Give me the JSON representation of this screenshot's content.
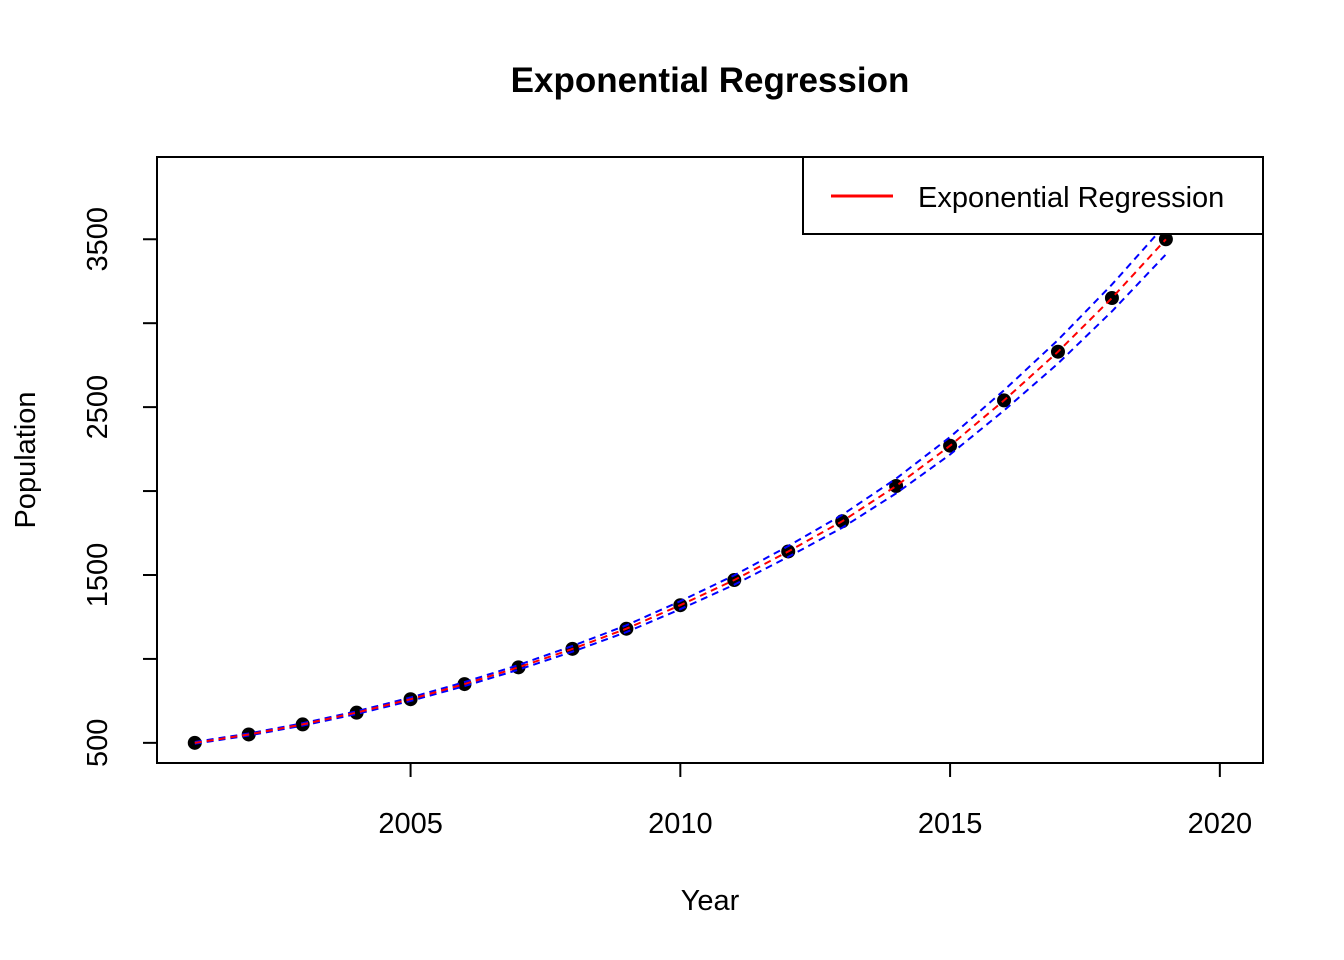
{
  "chart_data": {
    "type": "scatter",
    "title": "Exponential Regression",
    "xlabel": "Year",
    "ylabel": "Population",
    "xlim": [
      2000.3,
      2020.8
    ],
    "ylim": [
      380,
      3990
    ],
    "x_ticks": [
      2005,
      2010,
      2015,
      2020
    ],
    "y_ticks": [
      500,
      1500,
      2500,
      3500
    ],
    "y_minor_ticks": [
      500,
      1000,
      1500,
      2000,
      2500,
      3000,
      3500
    ],
    "grid": false,
    "legend": {
      "position": "top-right",
      "entries": [
        {
          "label": "Exponential Regression",
          "color": "#ff0000"
        }
      ]
    },
    "series": [
      {
        "kind": "points",
        "color": "#000000",
        "x": [
          2001,
          2002,
          2003,
          2004,
          2005,
          2006,
          2007,
          2008,
          2009,
          2010,
          2011,
          2012,
          2013,
          2014,
          2015,
          2016,
          2017,
          2018,
          2019
        ],
        "y": [
          500,
          550,
          610,
          680,
          760,
          850,
          950,
          1060,
          1180,
          1320,
          1470,
          1640,
          1820,
          2030,
          2270,
          2540,
          2830,
          3150,
          3500
        ]
      },
      {
        "kind": "fit",
        "color": "#ff0000",
        "line": "dashed",
        "x": [
          2001,
          2002,
          2003,
          2004,
          2005,
          2006,
          2007,
          2008,
          2009,
          2010,
          2011,
          2012,
          2013,
          2014,
          2015,
          2016,
          2017,
          2018,
          2019
        ],
        "y": [
          500,
          550,
          610,
          680,
          760,
          850,
          950,
          1060,
          1180,
          1320,
          1470,
          1640,
          1820,
          2030,
          2270,
          2540,
          2830,
          3150,
          3500
        ]
      },
      {
        "kind": "upper",
        "color": "#0000ff",
        "line": "dashed",
        "x": [
          2001,
          2002,
          2003,
          2004,
          2005,
          2006,
          2007,
          2008,
          2009,
          2010,
          2011,
          2012,
          2013,
          2014,
          2015,
          2016,
          2017,
          2018,
          2019
        ],
        "y": [
          505,
          556,
          617,
          688,
          770,
          862,
          964,
          1077,
          1200,
          1344,
          1498,
          1672,
          1858,
          2074,
          2322,
          2600,
          2900,
          3230,
          3590
        ]
      },
      {
        "kind": "lower",
        "color": "#0000ff",
        "line": "dashed",
        "x": [
          2001,
          2002,
          2003,
          2004,
          2005,
          2006,
          2007,
          2008,
          2009,
          2010,
          2011,
          2012,
          2013,
          2014,
          2015,
          2016,
          2017,
          2018,
          2019
        ],
        "y": [
          495,
          544,
          603,
          672,
          750,
          838,
          936,
          1043,
          1160,
          1296,
          1442,
          1608,
          1782,
          1986,
          2218,
          2480,
          2760,
          3070,
          3410
        ]
      }
    ]
  }
}
